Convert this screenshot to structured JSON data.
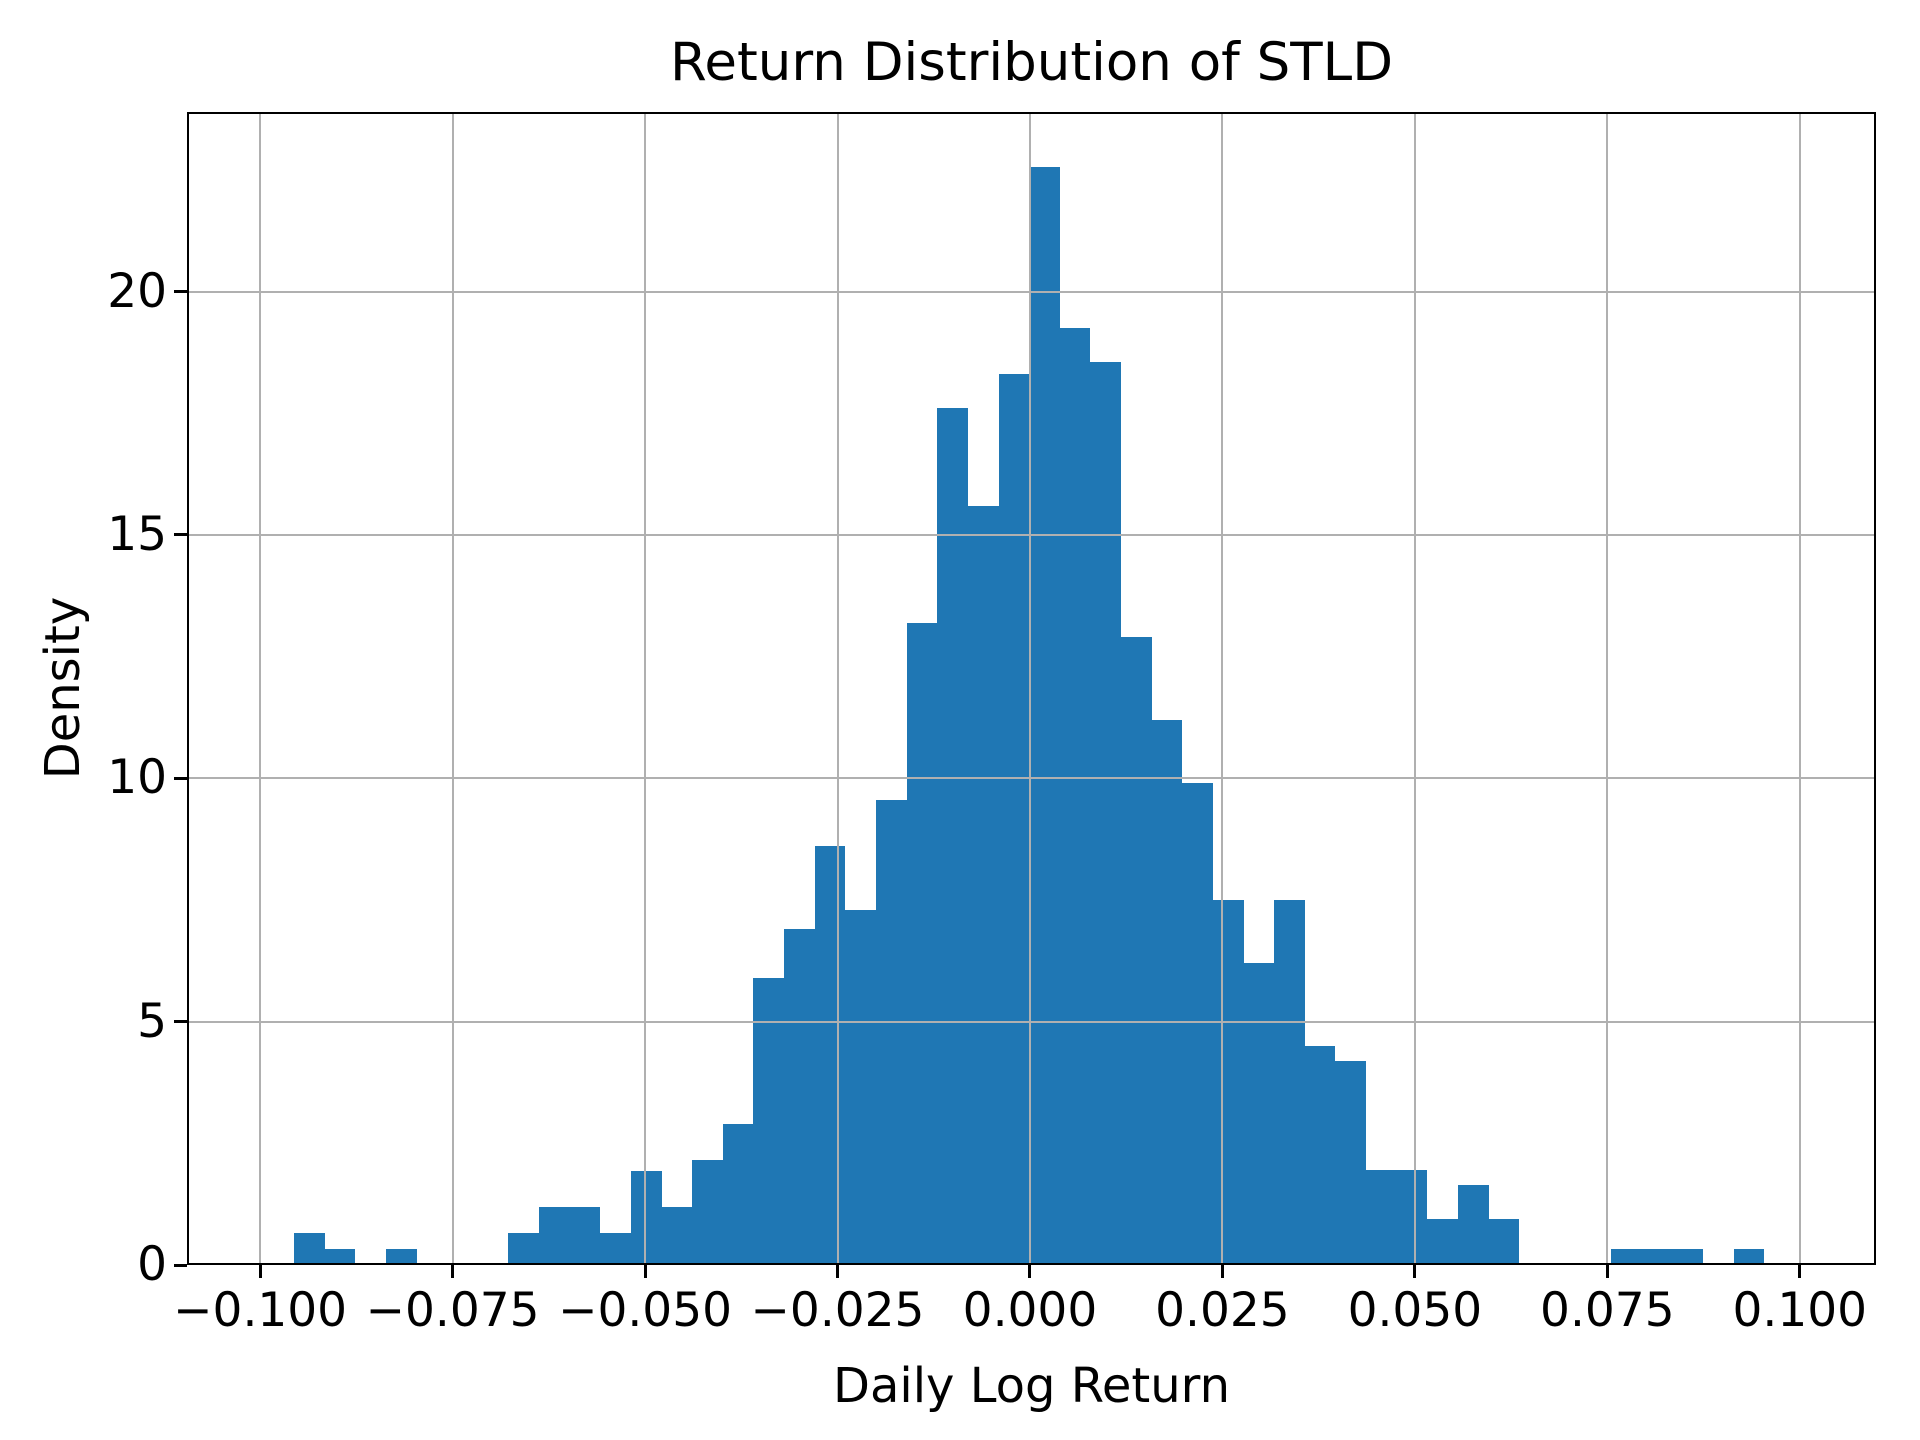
{
  "figure": {
    "title": "Return Distribution of STLD",
    "xlabel": "Daily Log Return",
    "ylabel": "Density"
  },
  "chart_data": {
    "type": "bar",
    "subtype": "histogram",
    "title": "Return Distribution of STLD",
    "xlabel": "Daily Log Return",
    "ylabel": "Density",
    "bin_start": -0.0956,
    "bin_width": 0.003979,
    "densities": [
      0.66,
      0.33,
      0,
      0.33,
      0,
      0,
      0,
      0.66,
      1.2,
      1.2,
      0.66,
      1.93,
      1.2,
      2.15,
      2.9,
      5.9,
      6.9,
      8.6,
      7.3,
      9.55,
      13.2,
      17.6,
      15.6,
      18.3,
      22.55,
      19.25,
      18.55,
      12.9,
      11.2,
      9.9,
      7.5,
      6.2,
      7.5,
      4.5,
      4.2,
      1.95,
      1.95,
      0.95,
      1.65,
      0.95,
      0,
      0,
      0,
      0.33,
      0.33,
      0.33,
      0,
      0.33
    ],
    "xlim": [
      -0.1095,
      0.1099
    ],
    "ylim": [
      0,
      23.69
    ],
    "x_ticks": [
      -0.1,
      -0.075,
      -0.05,
      -0.025,
      0,
      0.025,
      0.05,
      0.075,
      0.1
    ],
    "x_tick_labels": [
      "−0.100",
      "−0.075",
      "−0.050",
      "−0.025",
      "0.000",
      "0.025",
      "0.050",
      "0.075",
      "0.100"
    ],
    "y_ticks": [
      0,
      5,
      10,
      15,
      20
    ],
    "y_tick_labels": [
      "0",
      "5",
      "10",
      "15",
      "20"
    ],
    "grid": true,
    "grid_above_bars": true,
    "legend": null,
    "bar_color": "#1f77b4",
    "grid_color": "#b0b0b0",
    "spine_color": "#000000",
    "text_color": "#000000"
  }
}
